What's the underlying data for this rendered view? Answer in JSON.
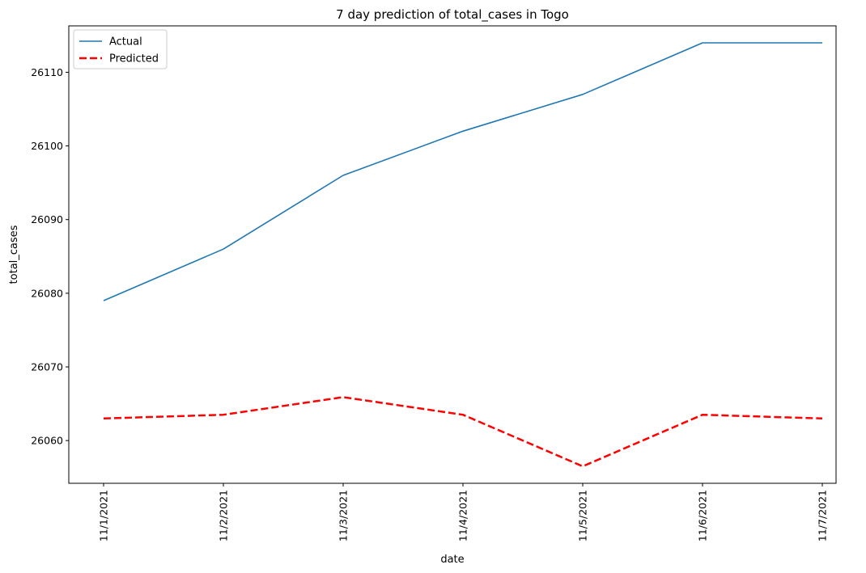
{
  "chart_data": {
    "type": "line",
    "title": "7 day prediction of total_cases in Togo",
    "xlabel": "date",
    "ylabel": "total_cases",
    "categories": [
      "11/1/2021",
      "11/2/2021",
      "11/3/2021",
      "11/4/2021",
      "11/5/2021",
      "11/6/2021",
      "11/7/2021"
    ],
    "series": [
      {
        "name": "Actual",
        "color": "#1f77b4",
        "style": "solid",
        "values": [
          26079,
          26086,
          26096,
          26102,
          26107,
          26114,
          26114
        ]
      },
      {
        "name": "Predicted",
        "color": "#ff0000",
        "style": "dashed",
        "values": [
          26063.0,
          26063.5,
          26065.9,
          26063.5,
          26056.5,
          26063.5,
          26063.0
        ]
      }
    ],
    "ylim": [
      26054.2,
      26116.3
    ],
    "yticks": [
      26060,
      26070,
      26080,
      26090,
      26100,
      26110
    ],
    "xtick_rotation": "vertical",
    "grid": false,
    "legend": "upper left"
  }
}
